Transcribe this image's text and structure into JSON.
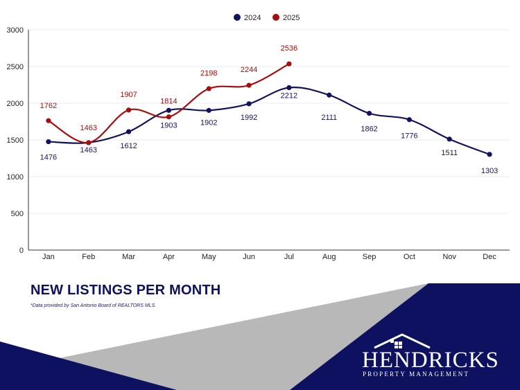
{
  "chart_data": {
    "type": "line",
    "categories": [
      "Jan",
      "Feb",
      "Mar",
      "Apr",
      "May",
      "Jun",
      "Jul",
      "Aug",
      "Sep",
      "Oct",
      "Nov",
      "Dec"
    ],
    "series": [
      {
        "name": "2024",
        "color": "#12135e",
        "values": [
          1476,
          1463,
          1612,
          1903,
          1902,
          1992,
          2212,
          2111,
          1862,
          1776,
          1511,
          1303
        ]
      },
      {
        "name": "2025",
        "color": "#a30e0e",
        "values": [
          1762,
          1463,
          1907,
          1814,
          2198,
          2244,
          2536,
          null,
          null,
          null,
          null,
          null
        ]
      }
    ],
    "ylim": [
      0,
      3000
    ],
    "yticks": [
      "0",
      "500",
      "1000",
      "1500",
      "2000",
      "2500",
      "3000"
    ],
    "grid": true,
    "legend": "top-center",
    "smooth": true
  },
  "title": "NEW LISTINGS PER MONTH",
  "footnote": "*Data provided by San Antonio Board of REALTORS MLS.",
  "brand": {
    "name": "HENDRICKS",
    "tagline": "PROPERTY MANAGEMENT",
    "navy": "#0d1160",
    "gray": "#b8b8b8"
  }
}
